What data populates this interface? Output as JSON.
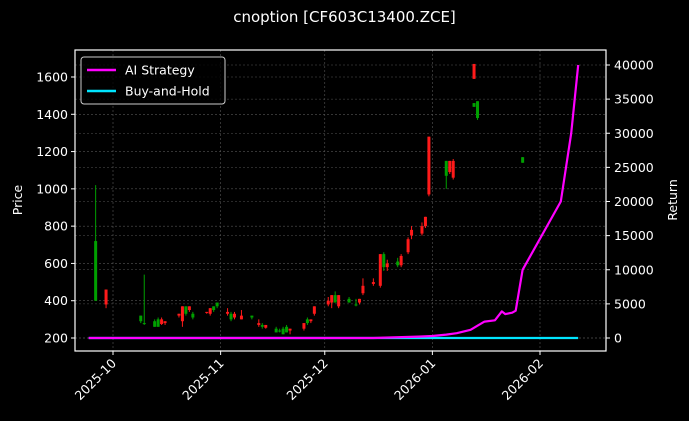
{
  "chart_data": {
    "type": "candlestick+line",
    "title": "cnoption [CF603C13400.ZCE]",
    "xlabel": "",
    "ylabel_left": "Price",
    "ylabel_right": "Return",
    "x_ticks": [
      "2025-10",
      "2025-11",
      "2025-12",
      "2026-01",
      "2026-02"
    ],
    "y_left_ticks": [
      200,
      400,
      600,
      800,
      1000,
      1200,
      1400,
      1600
    ],
    "y_right_ticks": [
      0,
      5000,
      10000,
      15000,
      20000,
      25000,
      30000,
      35000,
      40000
    ],
    "ylim_left": [
      130,
      1740
    ],
    "ylim_right": [
      -2000,
      41000
    ],
    "grid": true,
    "legend_position": "upper left",
    "legend": [
      {
        "label": "AI Strategy",
        "color": "#ff00ff"
      },
      {
        "label": "Buy-and-Hold",
        "color": "#00e5ff"
      }
    ],
    "colors": {
      "up": "#00a000",
      "down": "#ff1a1a",
      "strategy": "#ff00ff",
      "buy_hold": "#00e5ff",
      "grid": "#555555",
      "axes": "#ffffff",
      "background": "#000000"
    },
    "candles": [
      {
        "date": "2025-09-26",
        "open": 400,
        "high": 1020,
        "low": 400,
        "close": 720
      },
      {
        "date": "2025-09-29",
        "open": 460,
        "high": 460,
        "low": 360,
        "close": 380
      },
      {
        "date": "2025-10-09",
        "open": 290,
        "high": 320,
        "low": 280,
        "close": 320
      },
      {
        "date": "2025-10-10",
        "open": 280,
        "high": 540,
        "low": 270,
        "close": 280
      },
      {
        "date": "2025-10-13",
        "open": 260,
        "high": 300,
        "low": 260,
        "close": 290
      },
      {
        "date": "2025-10-14",
        "open": 260,
        "high": 310,
        "low": 260,
        "close": 300
      },
      {
        "date": "2025-10-15",
        "open": 300,
        "high": 310,
        "low": 270,
        "close": 275
      },
      {
        "date": "2025-10-16",
        "open": 290,
        "high": 290,
        "low": 270,
        "close": 280
      },
      {
        "date": "2025-10-20",
        "open": 330,
        "high": 330,
        "low": 310,
        "close": 320
      },
      {
        "date": "2025-10-21",
        "open": 370,
        "high": 370,
        "low": 260,
        "close": 290
      },
      {
        "date": "2025-10-22",
        "open": 330,
        "high": 370,
        "low": 320,
        "close": 370
      },
      {
        "date": "2025-10-23",
        "open": 370,
        "high": 370,
        "low": 340,
        "close": 350
      },
      {
        "date": "2025-10-24",
        "open": 310,
        "high": 340,
        "low": 300,
        "close": 330
      },
      {
        "date": "2025-10-28",
        "open": 340,
        "high": 340,
        "low": 330,
        "close": 335
      },
      {
        "date": "2025-10-29",
        "open": 360,
        "high": 360,
        "low": 320,
        "close": 330
      },
      {
        "date": "2025-10-30",
        "open": 350,
        "high": 370,
        "low": 340,
        "close": 370
      },
      {
        "date": "2025-10-31",
        "open": 370,
        "high": 390,
        "low": 360,
        "close": 390
      },
      {
        "date": "2025-11-03",
        "open": 340,
        "high": 360,
        "low": 320,
        "close": 330
      },
      {
        "date": "2025-11-04",
        "open": 300,
        "high": 340,
        "low": 290,
        "close": 330
      },
      {
        "date": "2025-11-05",
        "open": 330,
        "high": 340,
        "low": 300,
        "close": 310
      },
      {
        "date": "2025-11-07",
        "open": 320,
        "high": 350,
        "low": 300,
        "close": 300
      },
      {
        "date": "2025-11-10",
        "open": 310,
        "high": 320,
        "low": 300,
        "close": 320
      },
      {
        "date": "2025-11-12",
        "open": 280,
        "high": 300,
        "low": 260,
        "close": 270
      },
      {
        "date": "2025-11-13",
        "open": 260,
        "high": 280,
        "low": 250,
        "close": 270
      },
      {
        "date": "2025-11-14",
        "open": 270,
        "high": 270,
        "low": 250,
        "close": 255
      },
      {
        "date": "2025-11-17",
        "open": 230,
        "high": 260,
        "low": 230,
        "close": 250
      },
      {
        "date": "2025-11-18",
        "open": 240,
        "high": 250,
        "low": 230,
        "close": 240
      },
      {
        "date": "2025-11-19",
        "open": 220,
        "high": 260,
        "low": 220,
        "close": 250
      },
      {
        "date": "2025-11-20",
        "open": 230,
        "high": 270,
        "low": 230,
        "close": 260
      },
      {
        "date": "2025-11-21",
        "open": 250,
        "high": 250,
        "low": 220,
        "close": 240
      },
      {
        "date": "2025-11-25",
        "open": 280,
        "high": 280,
        "low": 240,
        "close": 250
      },
      {
        "date": "2025-11-26",
        "open": 280,
        "high": 310,
        "low": 270,
        "close": 300
      },
      {
        "date": "2025-11-27",
        "open": 300,
        "high": 300,
        "low": 280,
        "close": 290
      },
      {
        "date": "2025-11-28",
        "open": 370,
        "high": 370,
        "low": 320,
        "close": 330
      },
      {
        "date": "2025-12-02",
        "open": 400,
        "high": 420,
        "low": 370,
        "close": 380
      },
      {
        "date": "2025-12-03",
        "open": 430,
        "high": 430,
        "low": 360,
        "close": 390
      },
      {
        "date": "2025-12-04",
        "open": 390,
        "high": 450,
        "low": 390,
        "close": 430
      },
      {
        "date": "2025-12-05",
        "open": 430,
        "high": 430,
        "low": 360,
        "close": 370
      },
      {
        "date": "2025-12-08",
        "open": 390,
        "high": 420,
        "low": 390,
        "close": 410
      },
      {
        "date": "2025-12-10",
        "open": 380,
        "high": 410,
        "low": 370,
        "close": 380
      },
      {
        "date": "2025-12-11",
        "open": 410,
        "high": 410,
        "low": 380,
        "close": 390
      },
      {
        "date": "2025-12-12",
        "open": 480,
        "high": 520,
        "low": 430,
        "close": 440
      },
      {
        "date": "2025-12-15",
        "open": 500,
        "high": 520,
        "low": 480,
        "close": 490
      },
      {
        "date": "2025-12-17",
        "open": 650,
        "high": 650,
        "low": 470,
        "close": 480
      },
      {
        "date": "2025-12-18",
        "open": 580,
        "high": 660,
        "low": 560,
        "close": 650
      },
      {
        "date": "2025-12-19",
        "open": 600,
        "high": 620,
        "low": 560,
        "close": 580
      },
      {
        "date": "2025-12-22",
        "open": 590,
        "high": 630,
        "low": 580,
        "close": 610
      },
      {
        "date": "2025-12-23",
        "open": 640,
        "high": 650,
        "low": 580,
        "close": 590
      },
      {
        "date": "2025-12-25",
        "open": 730,
        "high": 740,
        "low": 650,
        "close": 660
      },
      {
        "date": "2025-12-26",
        "open": 780,
        "high": 800,
        "low": 730,
        "close": 750
      },
      {
        "date": "2025-12-29",
        "open": 800,
        "high": 820,
        "low": 750,
        "close": 760
      },
      {
        "date": "2025-12-30",
        "open": 850,
        "high": 850,
        "low": 790,
        "close": 800
      },
      {
        "date": "2025-12-31",
        "open": 1280,
        "high": 1280,
        "low": 960,
        "close": 970
      },
      {
        "date": "2026-01-05",
        "open": 1070,
        "high": 1150,
        "low": 1000,
        "close": 1150
      },
      {
        "date": "2026-01-06",
        "open": 1150,
        "high": 1150,
        "low": 1080,
        "close": 1090
      },
      {
        "date": "2026-01-07",
        "open": 1150,
        "high": 1160,
        "low": 1050,
        "close": 1060
      },
      {
        "date": "2026-01-13",
        "open": 1670,
        "high": 1670,
        "low": 1590,
        "close": 1590
      },
      {
        "date": "2026-01-13",
        "open": 1440,
        "high": 1460,
        "low": 1440,
        "close": 1460
      },
      {
        "date": "2026-01-14",
        "open": 1380,
        "high": 1470,
        "low": 1370,
        "close": 1470
      },
      {
        "date": "2026-01-27",
        "open": 1140,
        "high": 1170,
        "low": 1140,
        "close": 1170
      }
    ],
    "series": [
      {
        "name": "AI Strategy",
        "color": "#ff00ff",
        "x": [
          "2025-09-24",
          "2025-10-15",
          "2025-11-15",
          "2025-12-15",
          "2025-12-28",
          "2026-01-01",
          "2026-01-05",
          "2026-01-08",
          "2026-01-12",
          "2026-01-14",
          "2026-01-16",
          "2026-01-19",
          "2026-01-21",
          "2026-01-22",
          "2026-01-24",
          "2026-01-25",
          "2026-01-27",
          "2026-02-07",
          "2026-02-10",
          "2026-02-12"
        ],
        "values": [
          0,
          0,
          0,
          0,
          200,
          300,
          500,
          700,
          1200,
          1800,
          2400,
          2600,
          3900,
          3500,
          3700,
          4000,
          10000,
          20000,
          30000,
          40000
        ]
      },
      {
        "name": "Buy-and-Hold",
        "color": "#00e5ff",
        "x": [
          "2025-09-24",
          "2026-02-12"
        ],
        "values": [
          0,
          0
        ]
      }
    ]
  }
}
